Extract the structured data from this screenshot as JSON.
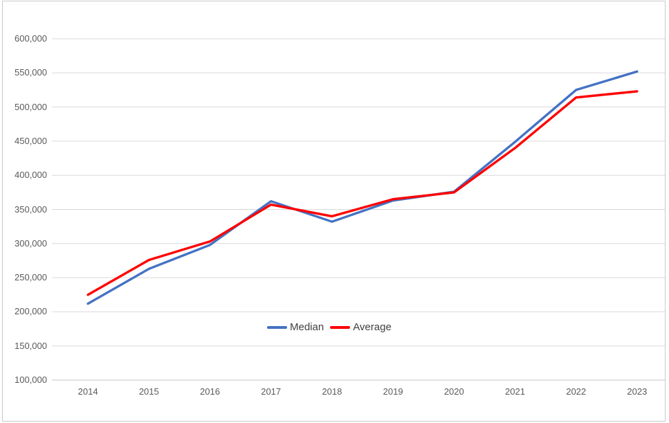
{
  "chart_data": {
    "type": "line",
    "title": "",
    "xlabel": "",
    "ylabel": "",
    "categories": [
      "2014",
      "2015",
      "2016",
      "2017",
      "2018",
      "2019",
      "2020",
      "2021",
      "2022",
      "2023"
    ],
    "series": [
      {
        "name": "Median",
        "color": "#4472C4",
        "values": [
          212000,
          263000,
          298000,
          362000,
          332000,
          363000,
          376000,
          449000,
          525000,
          552000
        ]
      },
      {
        "name": "Average",
        "color": "#FF0000",
        "values": [
          225000,
          276000,
          303000,
          357000,
          340000,
          365000,
          375000,
          440000,
          514000,
          523000
        ]
      }
    ],
    "ylim": [
      100000,
      600000
    ],
    "y_tick_step": 50000,
    "y_tick_labels": [
      "100,000",
      "150,000",
      "200,000",
      "250,000",
      "300,000",
      "350,000",
      "400,000",
      "450,000",
      "500,000",
      "550,000",
      "600,000"
    ],
    "grid": "horizontal-only",
    "legend_position": "inside-plot-bottom-center",
    "legend_entries": [
      "Median",
      "Average"
    ]
  },
  "colors": {
    "gridline": "#D9D9D9",
    "baseline": "#C6C6C6",
    "tick_text": "#595959",
    "legend_text": "#404040",
    "frame_border": "#C9C9C9",
    "background": "#FFFFFF"
  }
}
